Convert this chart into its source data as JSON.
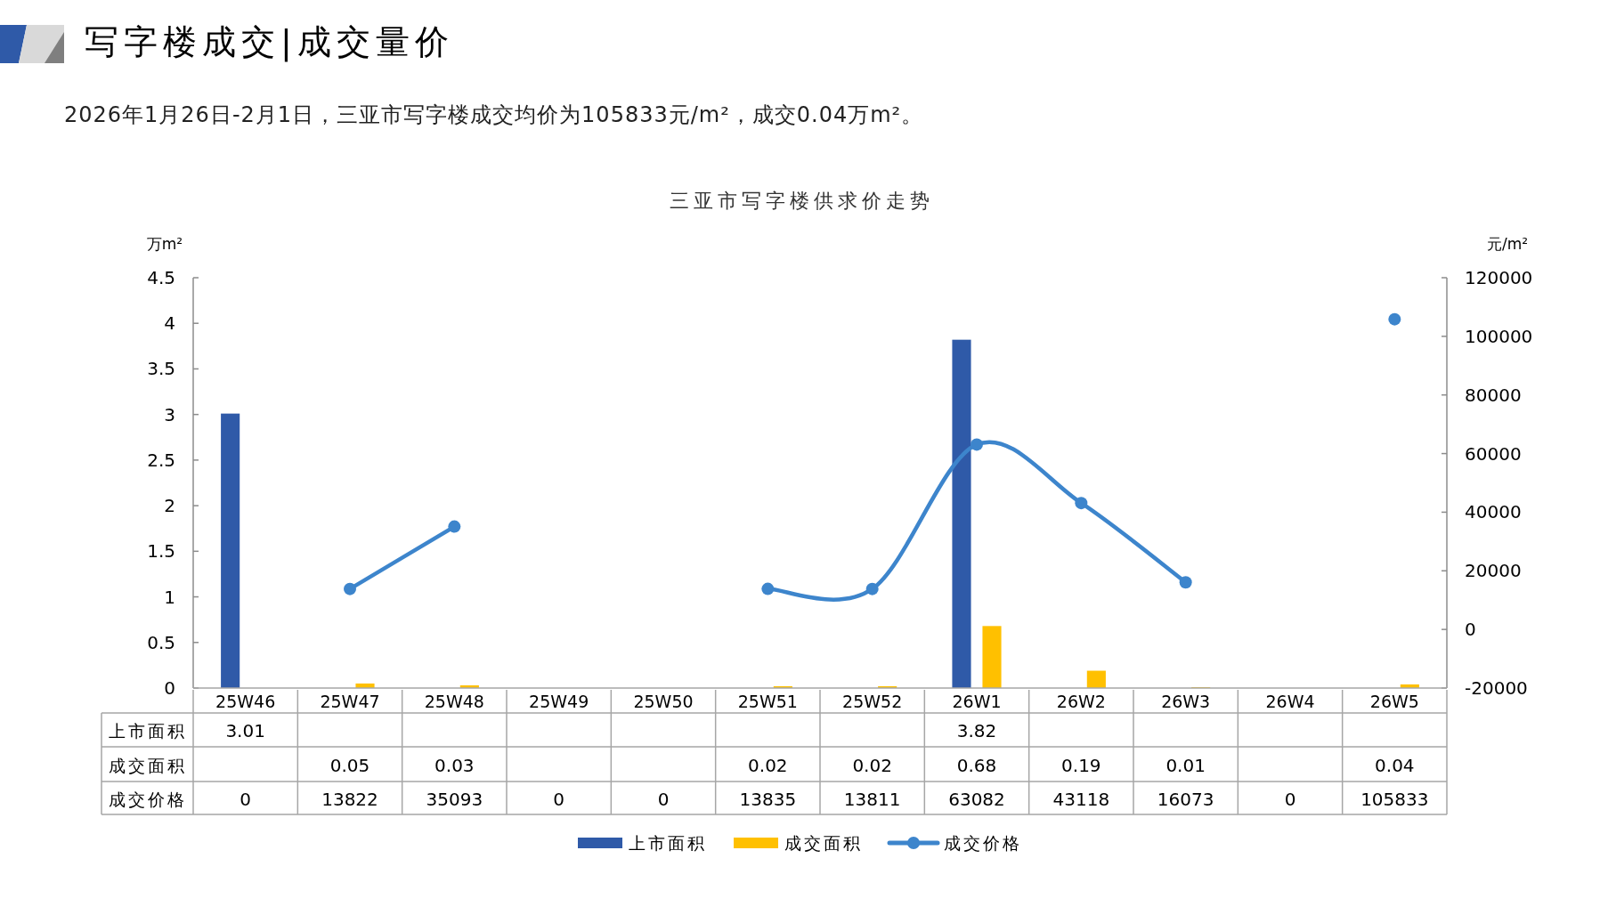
{
  "chart_data": {
    "type": "bar",
    "title": "写字楼成交|成交量价",
    "subtitle": "2026年1月26日-2月1日，三亚市写字楼成交均价为105833元/m²，成交0.04万m²。",
    "annotations": [
      "三亚市写字楼供求价走势"
    ],
    "ylabel": "万m²",
    "y2label": "元/m²",
    "categories": [
      "25W46",
      "25W47",
      "25W48",
      "25W49",
      "25W50",
      "25W51",
      "25W52",
      "26W1",
      "26W2",
      "26W3",
      "26W4",
      "26W5"
    ],
    "series": [
      {
        "name": "上市面积",
        "color": "#2f5aa8",
        "values": [
          3.01,
          null,
          null,
          null,
          null,
          null,
          null,
          3.82,
          null,
          null,
          null,
          null
        ],
        "value_labels": [
          "3.01",
          null,
          null,
          null,
          null,
          null,
          null,
          "3.82",
          null,
          null,
          null,
          null
        ]
      },
      {
        "name": "成交面积",
        "color": "#ffc000",
        "values": [
          null,
          0.05,
          0.03,
          null,
          null,
          0.02,
          0.02,
          0.68,
          0.19,
          0.01,
          null,
          0.04
        ],
        "value_labels": [
          null,
          "0.05",
          "0.03",
          null,
          null,
          "0.02",
          "0.02",
          "0.68",
          "0.19",
          "0.01",
          null,
          "0.04"
        ]
      },
      {
        "name": "成交价格",
        "type": "line",
        "axis": "y2",
        "color": "#3d85cc",
        "values": [
          null,
          13822,
          35093,
          null,
          null,
          13835,
          13811,
          63082,
          43118,
          16073,
          null,
          105833
        ],
        "value_labels": [
          "0",
          "13822",
          "35093",
          "0",
          "0",
          "13835",
          "13811",
          "63082",
          "43118",
          "16073",
          "0",
          "105833"
        ]
      }
    ],
    "ylim": [
      0,
      4.5
    ],
    "yticks": [
      0,
      0.5,
      1,
      1.5,
      2,
      2.5,
      3,
      3.5,
      4,
      4.5
    ],
    "y2lim": [
      -20000,
      120000
    ],
    "y2ticks": [
      -20000,
      0,
      20000,
      40000,
      60000,
      80000,
      100000,
      120000
    ],
    "legend": "bottom",
    "marker": "circle"
  }
}
